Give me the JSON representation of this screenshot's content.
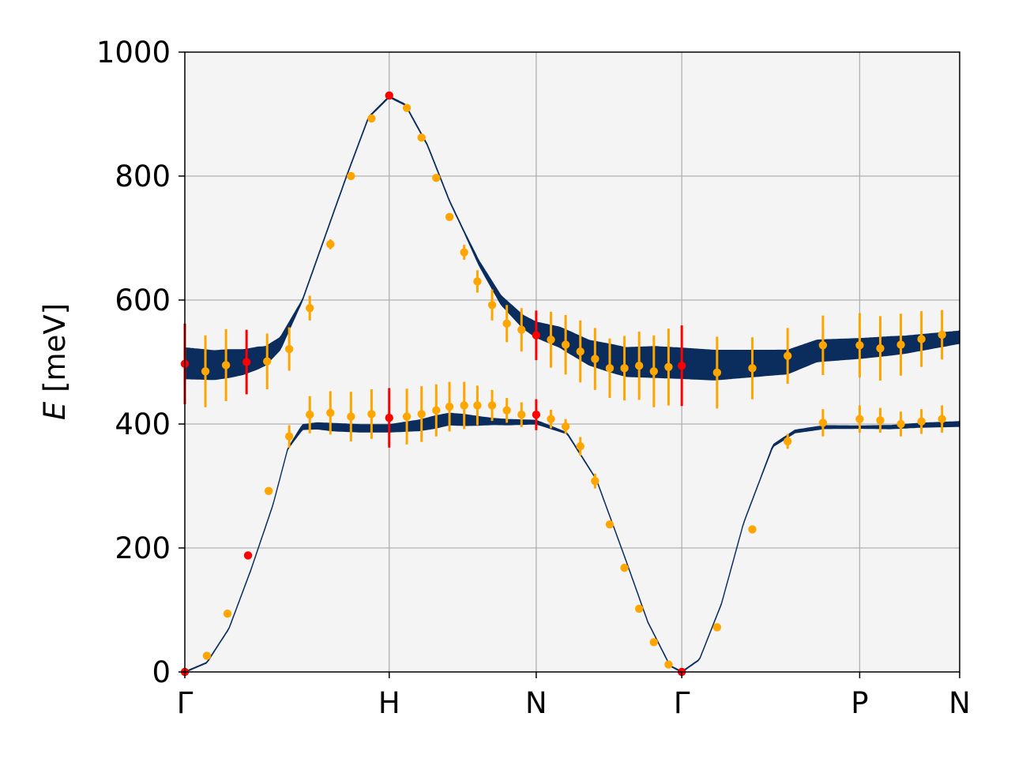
{
  "chart_data": {
    "type": "scatter",
    "title": "",
    "ylabel_var": "E",
    "ylabel_unit": " [meV]",
    "xlabel": "",
    "ylim": [
      0,
      1000
    ],
    "yticks": [
      "0",
      "200",
      "400",
      "600",
      "800",
      "1000"
    ],
    "ytick_values": [
      0,
      200,
      400,
      600,
      800,
      1000
    ],
    "xlim": [
      0,
      5.27
    ],
    "xticks": [
      {
        "label": "Γ",
        "x": 0
      },
      {
        "label": "H",
        "x": 1.39
      },
      {
        "label": "N",
        "x": 2.39
      },
      {
        "label": "Γ",
        "x": 3.38
      },
      {
        "label": "P",
        "x": 4.59
      },
      {
        "label": "N",
        "x": 5.27
      }
    ],
    "grid": true,
    "colors": {
      "background": "#f4f4f4",
      "band": "#0a2d5e",
      "points": "#ffa500",
      "highlight": "#ff0000",
      "grid": "#b0b0b0"
    },
    "series": [
      {
        "bands": [
          {
            "center": [
              [
                0,
                0
              ],
              [
                0.15,
                15
              ],
              [
                0.3,
                70
              ],
              [
                0.45,
                165
              ],
              [
                0.6,
                270
              ],
              [
                0.7,
                360
              ],
              [
                0.8,
                395
              ],
              [
                0.9,
                397
              ],
              [
                1.0,
                395
              ],
              [
                1.2,
                393
              ],
              [
                1.39,
                393
              ],
              [
                1.6,
                398
              ],
              [
                1.8,
                408
              ],
              [
                2.0,
                405
              ],
              [
                2.2,
                403
              ],
              [
                2.39,
                403
              ],
              [
                2.6,
                385
              ],
              [
                2.8,
                310
              ],
              [
                3.0,
                180
              ],
              [
                3.15,
                80
              ],
              [
                3.3,
                10
              ],
              [
                3.38,
                0
              ],
              [
                3.5,
                20
              ],
              [
                3.65,
                110
              ],
              [
                3.8,
                240
              ],
              [
                4.0,
                365
              ],
              [
                4.15,
                388
              ],
              [
                4.35,
                395
              ],
              [
                4.59,
                395
              ],
              [
                4.8,
                395
              ],
              [
                5.0,
                398
              ],
              [
                5.27,
                400
              ]
            ],
            "width": [
              [
                0,
                1
              ],
              [
                0.7,
                1
              ],
              [
                0.8,
                8
              ],
              [
                1.0,
                12
              ],
              [
                1.39,
                12
              ],
              [
                1.7,
                20
              ],
              [
                1.9,
                18
              ],
              [
                2.1,
                10
              ],
              [
                2.39,
                6
              ],
              [
                2.6,
                2
              ],
              [
                2.8,
                1
              ],
              [
                3.9,
                1
              ],
              [
                4.05,
                4
              ],
              [
                4.3,
                5
              ],
              [
                4.59,
                4
              ],
              [
                4.9,
                6
              ],
              [
                5.27,
                8
              ]
            ]
          },
          {
            "center": [
              [
                0,
                498
              ],
              [
                0.2,
                495
              ],
              [
                0.4,
                500
              ],
              [
                0.55,
                510
              ],
              [
                0.65,
                530
              ],
              [
                0.8,
                600
              ],
              [
                0.95,
                700
              ],
              [
                1.1,
                800
              ],
              [
                1.25,
                895
              ],
              [
                1.39,
                928
              ],
              [
                1.5,
                915
              ],
              [
                1.65,
                850
              ],
              [
                1.8,
                760
              ],
              [
                2.0,
                660
              ],
              [
                2.15,
                600
              ],
              [
                2.3,
                565
              ],
              [
                2.39,
                552
              ],
              [
                2.55,
                540
              ],
              [
                2.75,
                515
              ],
              [
                3.0,
                500
              ],
              [
                3.2,
                500
              ],
              [
                3.38,
                498
              ],
              [
                3.6,
                495
              ],
              [
                3.9,
                498
              ],
              [
                4.1,
                500
              ],
              [
                4.3,
                518
              ],
              [
                4.6,
                522
              ],
              [
                4.9,
                528
              ],
              [
                5.27,
                540
              ]
            ],
            "width": [
              [
                0,
                50
              ],
              [
                0.3,
                45
              ],
              [
                0.5,
                35
              ],
              [
                0.65,
                20
              ],
              [
                0.8,
                2
              ],
              [
                1.9,
                2
              ],
              [
                2.05,
                10
              ],
              [
                2.39,
                25
              ],
              [
                2.6,
                35
              ],
              [
                2.9,
                45
              ],
              [
                3.2,
                50
              ],
              [
                3.6,
                48
              ],
              [
                4.0,
                40
              ],
              [
                4.3,
                35
              ],
              [
                4.8,
                30
              ],
              [
                5.27,
                20
              ]
            ]
          }
        ]
      },
      {
        "points": [
          {
            "x": 0.0,
            "y": 0,
            "err": 0,
            "hl": true
          },
          {
            "x": 0.15,
            "y": 26,
            "err": 0,
            "hl": false
          },
          {
            "x": 0.29,
            "y": 94,
            "err": 0,
            "hl": false
          },
          {
            "x": 0.43,
            "y": 188,
            "err": 0,
            "hl": true
          },
          {
            "x": 0.57,
            "y": 292,
            "err": 0,
            "hl": false
          },
          {
            "x": 0.71,
            "y": 380,
            "err": 18,
            "hl": false
          },
          {
            "x": 0.85,
            "y": 415,
            "err": 30,
            "hl": false
          },
          {
            "x": 0.99,
            "y": 418,
            "err": 35,
            "hl": false
          },
          {
            "x": 1.13,
            "y": 412,
            "err": 40,
            "hl": false
          },
          {
            "x": 1.27,
            "y": 416,
            "err": 40,
            "hl": false
          },
          {
            "x": 1.39,
            "y": 410,
            "err": 48,
            "hl": true
          },
          {
            "x": 1.51,
            "y": 412,
            "err": 45,
            "hl": false
          },
          {
            "x": 1.61,
            "y": 416,
            "err": 45,
            "hl": false
          },
          {
            "x": 1.71,
            "y": 422,
            "err": 42,
            "hl": false
          },
          {
            "x": 1.8,
            "y": 428,
            "err": 40,
            "hl": false
          },
          {
            "x": 1.9,
            "y": 430,
            "err": 38,
            "hl": false
          },
          {
            "x": 1.99,
            "y": 430,
            "err": 32,
            "hl": false
          },
          {
            "x": 2.09,
            "y": 430,
            "err": 25,
            "hl": false
          },
          {
            "x": 2.19,
            "y": 422,
            "err": 20,
            "hl": false
          },
          {
            "x": 2.29,
            "y": 415,
            "err": 20,
            "hl": false
          },
          {
            "x": 2.39,
            "y": 415,
            "err": 25,
            "hl": true
          },
          {
            "x": 2.49,
            "y": 408,
            "err": 15,
            "hl": false
          },
          {
            "x": 2.59,
            "y": 396,
            "err": 12,
            "hl": false
          },
          {
            "x": 2.69,
            "y": 364,
            "err": 15,
            "hl": false
          },
          {
            "x": 2.79,
            "y": 308,
            "err": 12,
            "hl": false
          },
          {
            "x": 2.89,
            "y": 238,
            "err": 0,
            "hl": false
          },
          {
            "x": 2.99,
            "y": 168,
            "err": 0,
            "hl": false
          },
          {
            "x": 3.09,
            "y": 102,
            "err": 0,
            "hl": false
          },
          {
            "x": 3.19,
            "y": 48,
            "err": 0,
            "hl": false
          },
          {
            "x": 3.29,
            "y": 12,
            "err": 0,
            "hl": false
          },
          {
            "x": 3.38,
            "y": 0,
            "err": 0,
            "hl": true
          },
          {
            "x": 3.62,
            "y": 72,
            "err": 0,
            "hl": false
          },
          {
            "x": 3.86,
            "y": 230,
            "err": 0,
            "hl": false
          },
          {
            "x": 4.1,
            "y": 372,
            "err": 12,
            "hl": false
          },
          {
            "x": 4.34,
            "y": 402,
            "err": 22,
            "hl": false
          },
          {
            "x": 4.59,
            "y": 408,
            "err": 22,
            "hl": false
          },
          {
            "x": 4.73,
            "y": 406,
            "err": 20,
            "hl": false
          },
          {
            "x": 4.87,
            "y": 400,
            "err": 20,
            "hl": false
          },
          {
            "x": 5.01,
            "y": 404,
            "err": 20,
            "hl": false
          },
          {
            "x": 5.15,
            "y": 408,
            "err": 22,
            "hl": false
          },
          {
            "x": 0.0,
            "y": 497,
            "err": 65,
            "hl": true
          },
          {
            "x": 0.14,
            "y": 485,
            "err": 58,
            "hl": false
          },
          {
            "x": 0.28,
            "y": 495,
            "err": 58,
            "hl": false
          },
          {
            "x": 0.42,
            "y": 500,
            "err": 52,
            "hl": true
          },
          {
            "x": 0.56,
            "y": 501,
            "err": 45,
            "hl": false
          },
          {
            "x": 0.71,
            "y": 521,
            "err": 35,
            "hl": false
          },
          {
            "x": 0.85,
            "y": 587,
            "err": 20,
            "hl": false
          },
          {
            "x": 0.99,
            "y": 690,
            "err": 8,
            "hl": false
          },
          {
            "x": 1.13,
            "y": 800,
            "err": 0,
            "hl": false
          },
          {
            "x": 1.27,
            "y": 893,
            "err": 0,
            "hl": false
          },
          {
            "x": 1.39,
            "y": 930,
            "err": 0,
            "hl": true
          },
          {
            "x": 1.51,
            "y": 910,
            "err": 0,
            "hl": false
          },
          {
            "x": 1.61,
            "y": 862,
            "err": 0,
            "hl": false
          },
          {
            "x": 1.71,
            "y": 797,
            "err": 0,
            "hl": false
          },
          {
            "x": 1.8,
            "y": 734,
            "err": 0,
            "hl": false
          },
          {
            "x": 1.9,
            "y": 677,
            "err": 12,
            "hl": false
          },
          {
            "x": 1.99,
            "y": 630,
            "err": 18,
            "hl": false
          },
          {
            "x": 2.09,
            "y": 592,
            "err": 25,
            "hl": false
          },
          {
            "x": 2.19,
            "y": 562,
            "err": 30,
            "hl": false
          },
          {
            "x": 2.29,
            "y": 552,
            "err": 35,
            "hl": false
          },
          {
            "x": 2.39,
            "y": 543,
            "err": 40,
            "hl": true
          },
          {
            "x": 2.49,
            "y": 536,
            "err": 45,
            "hl": false
          },
          {
            "x": 2.59,
            "y": 528,
            "err": 48,
            "hl": false
          },
          {
            "x": 2.69,
            "y": 517,
            "err": 50,
            "hl": false
          },
          {
            "x": 2.79,
            "y": 505,
            "err": 50,
            "hl": false
          },
          {
            "x": 2.89,
            "y": 490,
            "err": 48,
            "hl": false
          },
          {
            "x": 2.99,
            "y": 490,
            "err": 52,
            "hl": false
          },
          {
            "x": 3.09,
            "y": 494,
            "err": 55,
            "hl": false
          },
          {
            "x": 3.19,
            "y": 485,
            "err": 58,
            "hl": false
          },
          {
            "x": 3.29,
            "y": 492,
            "err": 62,
            "hl": false
          },
          {
            "x": 3.38,
            "y": 494,
            "err": 65,
            "hl": true
          },
          {
            "x": 3.62,
            "y": 483,
            "err": 58,
            "hl": false
          },
          {
            "x": 3.86,
            "y": 490,
            "err": 50,
            "hl": false
          },
          {
            "x": 4.1,
            "y": 510,
            "err": 45,
            "hl": false
          },
          {
            "x": 4.34,
            "y": 527,
            "err": 48,
            "hl": false
          },
          {
            "x": 4.59,
            "y": 527,
            "err": 52,
            "hl": false
          },
          {
            "x": 4.73,
            "y": 522,
            "err": 52,
            "hl": false
          },
          {
            "x": 4.87,
            "y": 528,
            "err": 50,
            "hl": false
          },
          {
            "x": 5.01,
            "y": 537,
            "err": 45,
            "hl": false
          },
          {
            "x": 5.15,
            "y": 544,
            "err": 40,
            "hl": false
          }
        ]
      }
    ]
  }
}
